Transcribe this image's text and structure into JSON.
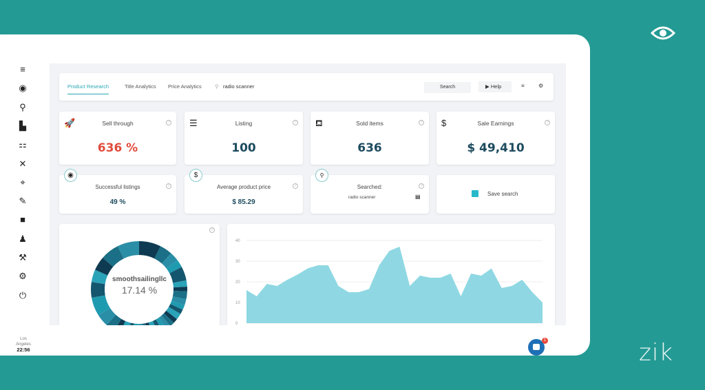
{
  "brand": "zik",
  "sidebar": {
    "icons": [
      "menu-icon",
      "eye-icon",
      "search-zoom-icon",
      "store-icon",
      "sitemap-icon",
      "tools-icon",
      "crosshair-icon",
      "user-edit-icon",
      "folder-icon",
      "user-tie-icon",
      "wrench-icon",
      "gear-icon",
      "power-icon"
    ],
    "timezone": "Los Angeles",
    "time": "22:56"
  },
  "topbar": {
    "tabs": [
      "Product Research",
      "Title Analytics",
      "Price Analytics"
    ],
    "active_tab": "Product Research",
    "search_value": "radio scanner",
    "search_label": "Search",
    "help_label": "Help"
  },
  "stats": [
    {
      "title": "Sell through",
      "value": "636 %",
      "icon": "rocket-icon",
      "color": "#e04b3c"
    },
    {
      "title": "Listing",
      "value": "100",
      "icon": "list-icon",
      "color": "#1d4b5e"
    },
    {
      "title": "Sold items",
      "value": "636",
      "icon": "basket-icon",
      "color": "#1d4b5e"
    },
    {
      "title": "Sale Earnings",
      "value": "$ 49,410",
      "icon": "hand-dollar-icon",
      "color": "#1d4b5e"
    }
  ],
  "stats2": [
    {
      "title": "Successful listings",
      "value": "49 %"
    },
    {
      "title": "Average product price",
      "value": "$ 85.29"
    },
    {
      "title": "Searched:",
      "value": "radio scanner"
    }
  ],
  "save_search_label": "Save search",
  "donut": {
    "label": "smoothsailingllc",
    "value": "17.14 %"
  },
  "chat_badge": "1",
  "chart_data": {
    "type": "area",
    "ylim": [
      0,
      40
    ],
    "yticks": [
      "0",
      "10",
      "20",
      "30",
      "40"
    ],
    "grid": true,
    "color": "#8fd8e3",
    "values": [
      16,
      13,
      19,
      18,
      21,
      23.5,
      26.5,
      28,
      28,
      18,
      15,
      15,
      16.5,
      28,
      35,
      37,
      18,
      23,
      22,
      22,
      24,
      13,
      24,
      23,
      26.5,
      17,
      18,
      21,
      15,
      10
    ]
  }
}
